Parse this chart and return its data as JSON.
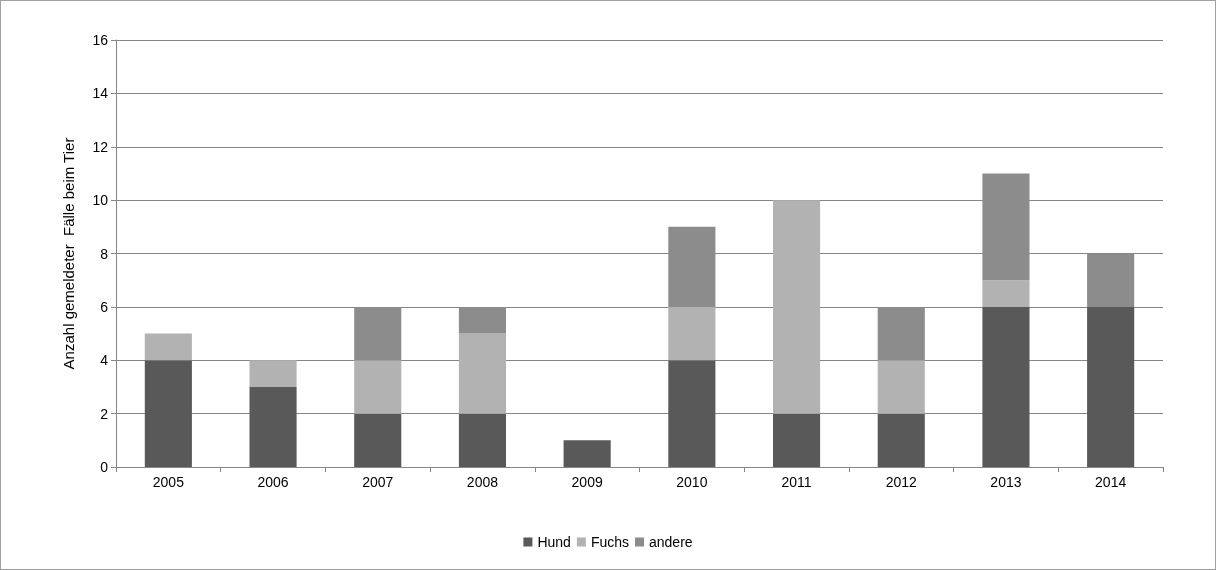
{
  "chart_data": {
    "type": "bar",
    "stacked": true,
    "ylabel": "Anzahl gemeldeter  Fälle beim Tier",
    "categories": [
      "2005",
      "2006",
      "2007",
      "2008",
      "2009",
      "2010",
      "2011",
      "2012",
      "2013",
      "2014"
    ],
    "series": [
      {
        "name": "Hund",
        "color": "#595959",
        "values": [
          4,
          3,
          2,
          2,
          1,
          4,
          2,
          2,
          6,
          6
        ]
      },
      {
        "name": "Fuchs",
        "color": "#b2b2b2",
        "values": [
          1,
          1,
          2,
          3,
          0,
          2,
          8,
          2,
          1,
          0
        ]
      },
      {
        "name": "andere",
        "color": "#8c8c8c",
        "values": [
          0,
          0,
          2,
          1,
          0,
          3,
          0,
          2,
          4,
          2
        ]
      }
    ],
    "ylim": [
      0,
      16
    ],
    "yticks": [
      0,
      2,
      4,
      6,
      8,
      10,
      12,
      14,
      16
    ],
    "grid": "y",
    "legend": "bottom"
  }
}
